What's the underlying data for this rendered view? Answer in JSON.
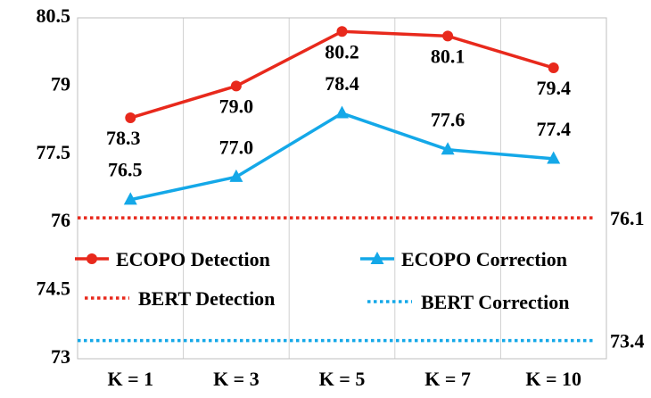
{
  "chart_data": {
    "type": "line",
    "categories": [
      "K = 1",
      "K = 3",
      "K = 5",
      "K = 7",
      "K = 10"
    ],
    "ylim": [
      73,
      80.5
    ],
    "yticks": [
      {
        "value": 80.5,
        "label": "80.5"
      },
      {
        "value": 79,
        "label": "79"
      },
      {
        "value": 77.5,
        "label": "77.5"
      },
      {
        "value": 76,
        "label": "76"
      },
      {
        "value": 74.5,
        "label": "74.5"
      },
      {
        "value": 73,
        "label": "73"
      }
    ],
    "grid": "vertical-only",
    "series": [
      {
        "name": "ECOPO Detection",
        "values": [
          78.3,
          79.0,
          80.2,
          80.1,
          79.4
        ],
        "labels": [
          "78.3",
          "79.0",
          "80.2",
          "80.1",
          "79.4"
        ],
        "color": "#e8291c",
        "marker": "circle",
        "line": "solid"
      },
      {
        "name": "ECOPO Correction",
        "values": [
          76.5,
          77.0,
          78.4,
          77.6,
          77.4
        ],
        "labels": [
          "76.5",
          "77.0",
          "78.4",
          "77.6",
          "77.4"
        ],
        "color": "#14a8e8",
        "marker": "triangle",
        "line": "solid"
      }
    ],
    "reference_lines": [
      {
        "name": "BERT Detection",
        "value": 76.1,
        "label": "76.1",
        "color": "#e8291c",
        "style": "dotted"
      },
      {
        "name": "BERT Correction",
        "value": 73.4,
        "label": "73.4",
        "color": "#14a8e8",
        "style": "dotted"
      }
    ],
    "legend_placement": "inside-lower"
  }
}
